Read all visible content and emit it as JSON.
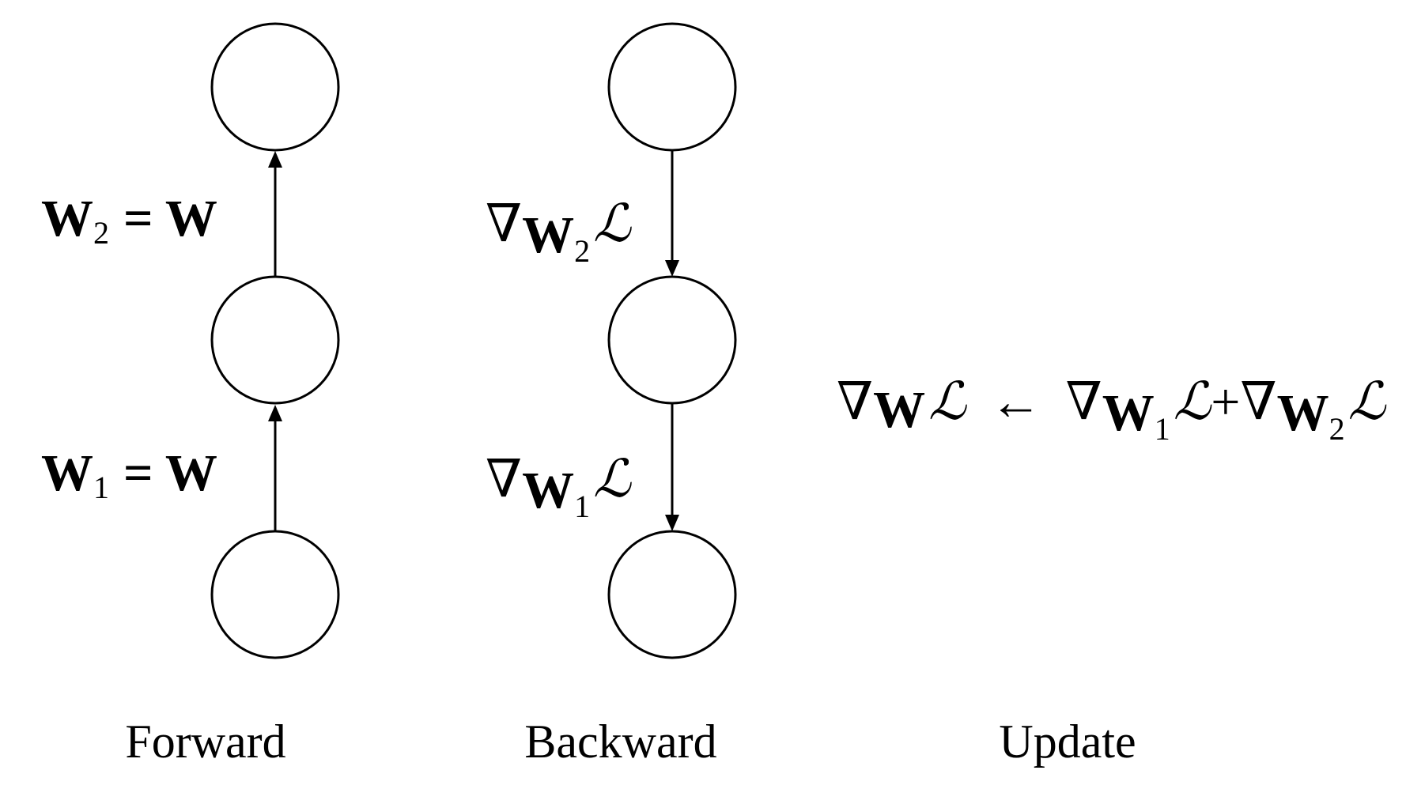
{
  "columns": [
    {
      "caption": "Forward",
      "edge_labels": [
        {
          "w": "W",
          "sub": "2",
          "rhs": "= W"
        },
        {
          "w": "W",
          "sub": "1",
          "rhs": "= W"
        }
      ]
    },
    {
      "caption": "Backward",
      "edge_labels": [
        {
          "nabla": "∇",
          "w": "W",
          "sub": "2",
          "loss": "ℒ"
        },
        {
          "nabla": "∇",
          "w": "W",
          "sub": "1",
          "loss": "ℒ"
        }
      ]
    },
    {
      "caption": "Update",
      "equation": {
        "lhs_nabla": "∇",
        "lhs_w": "W",
        "lhs_loss": "ℒ",
        "arrow": "←",
        "term1_nabla": "∇",
        "term1_w": "W",
        "term1_sub": "1",
        "term1_loss": "ℒ",
        "plus": "+",
        "term2_nabla": "∇",
        "term2_w": "W",
        "term2_sub": "2",
        "term2_loss": "ℒ"
      }
    }
  ]
}
